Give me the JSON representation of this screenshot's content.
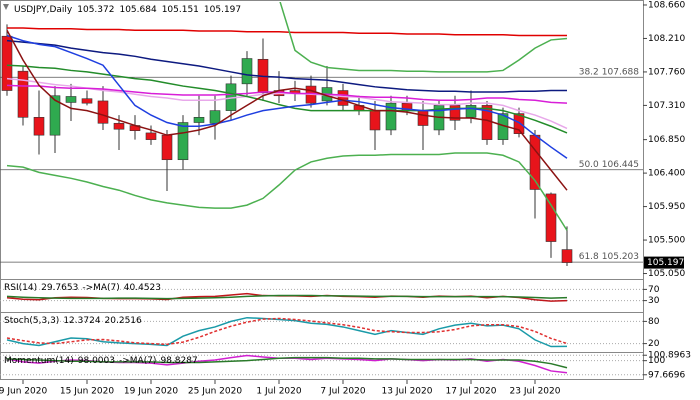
{
  "chart_data": [
    {
      "type": "candlestick",
      "title": "USDJPY,Daily",
      "categories": [
        null,
        "9 Jun 2020",
        null,
        null,
        null,
        "15 Jun 2020",
        null,
        null,
        null,
        "19 Jun 2020",
        null,
        null,
        null,
        "25 Jun 2020",
        null,
        null,
        null,
        "1 Jul 2020",
        null,
        null,
        null,
        "7 Jul 2020",
        null,
        null,
        null,
        "13 Jul 2020",
        null,
        null,
        null,
        "17 Jul 2020",
        null,
        null,
        null,
        "23 Jul 2020",
        null,
        null
      ],
      "open": [
        108.24,
        107.77,
        107.15,
        106.91,
        107.35,
        107.4,
        107.37,
        107.07,
        107.04,
        106.94,
        106.91,
        106.58,
        107.08,
        107.07,
        107.24,
        107.6,
        107.93,
        107.51,
        107.51,
        107.57,
        107.37,
        107.51,
        107.31,
        107.24,
        106.98,
        107.34,
        107.24,
        106.98,
        107.31,
        107.15,
        107.31,
        106.85,
        107.2,
        106.91,
        106.12,
        105.372
      ],
      "high": [
        108.4,
        107.84,
        107.51,
        107.57,
        107.6,
        107.51,
        107.57,
        107.18,
        107.18,
        107.04,
        106.98,
        107.18,
        107.44,
        107.44,
        107.71,
        108.04,
        108.21,
        107.77,
        107.64,
        107.71,
        107.84,
        107.6,
        107.44,
        107.37,
        107.44,
        107.44,
        107.37,
        107.37,
        107.44,
        107.51,
        107.37,
        107.28,
        107.28,
        106.98,
        106.14,
        105.684
      ],
      "low": [
        107.44,
        107.04,
        106.65,
        106.67,
        107.1,
        107.31,
        106.98,
        106.71,
        106.85,
        106.78,
        106.16,
        106.45,
        106.91,
        106.85,
        107.11,
        107.44,
        107.37,
        107.34,
        107.37,
        107.28,
        107.31,
        107.24,
        107.18,
        106.71,
        106.91,
        107.18,
        106.71,
        106.91,
        106.98,
        107.07,
        106.78,
        106.78,
        106.88,
        105.79,
        105.26,
        105.151
      ],
      "close": [
        107.51,
        107.15,
        106.91,
        107.44,
        107.43,
        107.34,
        107.07,
        106.99,
        106.97,
        106.85,
        106.58,
        107.08,
        107.15,
        107.24,
        107.6,
        107.94,
        107.48,
        107.44,
        107.47,
        107.34,
        107.55,
        107.31,
        107.24,
        106.98,
        107.34,
        107.24,
        107.04,
        107.31,
        107.11,
        107.31,
        106.85,
        107.2,
        106.93,
        106.18,
        105.48,
        105.197
      ],
      "up_color": "#2faa4f",
      "down_color": "#e8141b",
      "ylim": [
        104.99,
        108.7
      ],
      "yticks": [
        {
          "value": 108.66,
          "label": "108.660"
        },
        {
          "value": 108.21,
          "label": "108.210"
        },
        {
          "value": 107.76,
          "label": "107.760"
        },
        {
          "value": 107.31,
          "label": "107.310"
        },
        {
          "value": 106.85,
          "label": "106.850"
        },
        {
          "value": 106.4,
          "label": "106.400"
        },
        {
          "value": 105.95,
          "label": "105.950"
        },
        {
          "value": 105.5,
          "label": "105.500"
        },
        {
          "value": 105.05,
          "label": "105.050"
        }
      ],
      "lines": [
        {
          "color": "#e00000",
          "values": [
            108.35,
            108.35,
            108.34,
            108.34,
            108.34,
            108.33,
            108.33,
            108.33,
            108.32,
            108.32,
            108.32,
            108.32,
            108.31,
            108.31,
            108.31,
            108.3,
            108.3,
            108.3,
            108.29,
            108.29,
            108.29,
            108.29,
            108.28,
            108.28,
            108.28,
            108.27,
            108.27,
            108.27,
            108.26,
            108.26,
            108.26,
            108.26,
            108.25,
            108.25,
            108.25,
            108.25
          ]
        },
        {
          "color": "#4cb050",
          "values": [
            null,
            null,
            null,
            null,
            null,
            null,
            null,
            null,
            null,
            null,
            null,
            null,
            null,
            null,
            null,
            null,
            null,
            108.75,
            108.05,
            107.89,
            107.82,
            107.8,
            107.78,
            107.78,
            107.78,
            107.77,
            107.77,
            107.76,
            107.76,
            107.76,
            107.76,
            107.78,
            107.92,
            108.08,
            108.19,
            108.21
          ]
        },
        {
          "color": "#4cb050",
          "values": [
            106.5,
            106.48,
            106.41,
            106.37,
            106.33,
            106.28,
            106.22,
            106.17,
            106.1,
            106.04,
            106.0,
            105.97,
            105.94,
            105.93,
            105.93,
            105.97,
            106.06,
            106.24,
            106.44,
            106.55,
            106.6,
            106.63,
            106.64,
            106.64,
            106.65,
            106.65,
            106.65,
            106.65,
            106.67,
            106.67,
            106.67,
            106.64,
            106.55,
            106.3,
            105.97,
            105.63
          ]
        },
        {
          "color": "#0d1a80",
          "values": [
            108.18,
            108.16,
            108.14,
            108.12,
            108.08,
            108.05,
            108.02,
            108,
            107.97,
            107.93,
            107.9,
            107.87,
            107.84,
            107.8,
            107.76,
            107.72,
            107.7,
            107.69,
            107.67,
            107.66,
            107.65,
            107.62,
            107.59,
            107.56,
            107.54,
            107.52,
            107.51,
            107.5,
            107.5,
            107.49,
            107.49,
            107.49,
            107.5,
            107.5,
            107.51,
            107.51
          ]
        },
        {
          "color": "#e8a8ea",
          "values": [
            107.67,
            107.65,
            107.62,
            107.59,
            107.57,
            107.54,
            107.51,
            107.49,
            107.46,
            107.43,
            107.41,
            107.38,
            107.38,
            107.38,
            107.41,
            107.43,
            107.46,
            107.47,
            107.47,
            107.46,
            107.45,
            107.43,
            107.42,
            107.39,
            107.36,
            107.35,
            107.34,
            107.32,
            107.32,
            107.34,
            107.34,
            107.31,
            107.24,
            107.18,
            107.1,
            107.0
          ]
        },
        {
          "color": "#d81ed8",
          "values": [
            107.58,
            107.57,
            107.57,
            107.55,
            107.54,
            107.54,
            107.53,
            107.51,
            107.49,
            107.47,
            107.46,
            107.45,
            107.45,
            107.45,
            107.46,
            107.47,
            107.49,
            107.49,
            107.47,
            107.47,
            107.46,
            107.45,
            107.43,
            107.42,
            107.42,
            107.41,
            107.39,
            107.38,
            107.38,
            107.39,
            107.41,
            107.41,
            107.39,
            107.38,
            107.35,
            107.34
          ]
        },
        {
          "color": "#238c2a",
          "values": [
            107.85,
            107.84,
            107.82,
            107.81,
            107.78,
            107.76,
            107.73,
            107.7,
            107.67,
            107.65,
            107.61,
            107.57,
            107.54,
            107.51,
            107.47,
            107.43,
            107.38,
            107.32,
            107.27,
            107.24,
            107.24,
            107.24,
            107.24,
            107.24,
            107.24,
            107.24,
            107.24,
            107.26,
            107.27,
            107.27,
            107.27,
            107.24,
            107.18,
            107.11,
            107.03,
            106.94
          ]
        },
        {
          "color": "#1f3fe0",
          "values": [
            108.25,
            108.18,
            108.13,
            108.1,
            108.02,
            107.94,
            107.85,
            107.58,
            107.31,
            107.18,
            107.08,
            107.03,
            107.03,
            107.06,
            107.11,
            107.18,
            107.24,
            107.27,
            107.3,
            107.32,
            107.35,
            107.38,
            107.36,
            107.32,
            107.28,
            107.26,
            107.24,
            107.24,
            107.26,
            107.27,
            107.24,
            107.18,
            107.08,
            106.91,
            106.75,
            106.6
          ]
        },
        {
          "color": "#8b1212",
          "values": [
            108.32,
            107.92,
            107.58,
            107.38,
            107.27,
            107.24,
            107.18,
            107.11,
            107.04,
            106.98,
            106.91,
            106.94,
            106.98,
            107.04,
            107.18,
            107.31,
            107.44,
            107.51,
            107.54,
            107.51,
            107.44,
            107.38,
            107.31,
            107.24,
            107.24,
            107.22,
            107.18,
            107.15,
            107.14,
            107.14,
            107.11,
            107.04,
            106.98,
            106.71,
            106.44,
            106.17
          ]
        }
      ],
      "levels": [
        {
          "ratio": 38.2,
          "price": 107.688
        },
        {
          "ratio": {
            "value": 50,
            "label": "50.0"
          },
          "price": 106.445
        },
        {
          "ratio": 61.8,
          "price": 105.203
        }
      ],
      "level_color": "#555555"
    },
    {
      "type": "line",
      "ylim": [
        0,
        100
      ],
      "yticks": [
        70,
        30
      ],
      "grid": true,
      "series": [
        {
          "name": "RSI(14)",
          "color": "#c0161b",
          "values": [
            40,
            35,
            33,
            40,
            42,
            41,
            38,
            37,
            37,
            36,
            34,
            42,
            44,
            45,
            50,
            55,
            48,
            47,
            47,
            45,
            48,
            45,
            44,
            42,
            46,
            45,
            42,
            46,
            44,
            46,
            40,
            45,
            41,
            33,
            28,
            29.7653
          ]
        },
        {
          "name": "->MA(7)",
          "color": "#2a7a2a",
          "values": [
            45,
            42,
            40,
            39,
            38,
            38,
            38,
            39,
            39,
            38,
            37,
            38,
            39,
            40,
            42,
            45,
            47,
            48,
            48,
            48,
            47,
            47,
            46,
            45,
            45,
            45,
            44,
            44,
            44,
            44,
            44,
            44,
            43,
            41,
            39,
            40.4523
          ]
        }
      ]
    },
    {
      "type": "line",
      "ylim": [
        0,
        100
      ],
      "yticks": [
        80,
        20
      ],
      "grid": true,
      "series": [
        {
          "name": "Stoch(5,3,3)",
          "color": "#1a9aa8",
          "values": [
            30,
            20,
            15,
            25,
            35,
            33,
            25,
            22,
            20,
            18,
            15,
            40,
            55,
            65,
            80,
            90,
            88,
            85,
            82,
            75,
            72,
            65,
            55,
            45,
            55,
            50,
            45,
            60,
            70,
            75,
            68,
            70,
            60,
            30,
            12,
            12.3724
          ]
        },
        {
          "color": "#e03030",
          "dashed": true,
          "values": [
            35,
            28,
            22,
            20,
            25,
            30,
            31,
            27,
            22,
            20,
            18,
            24,
            37,
            53,
            67,
            78,
            86,
            88,
            85,
            81,
            76,
            71,
            64,
            55,
            52,
            50,
            50,
            52,
            58,
            68,
            71,
            71,
            66,
            53,
            34,
            20.2516
          ]
        }
      ]
    },
    {
      "type": "line",
      "ylim": [
        97.3,
        101.1
      ],
      "yticks": [
        100.8963,
        100,
        97.6696
      ],
      "grid": true,
      "series": [
        {
          "name": "Momentum(14)",
          "color": "#d020d0",
          "values": [
            100.3,
            99.8,
            99.6,
            99.9,
            100.1,
            100,
            99.8,
            99.7,
            99.7,
            99.6,
            99.3,
            99.6,
            99.9,
            100.1,
            100.5,
            100.85,
            100.6,
            100.4,
            100.4,
            100.2,
            100.4,
            100.3,
            100.2,
            100,
            100.3,
            100.2,
            100,
            100.2,
            100.1,
            100.3,
            99.9,
            100.2,
            99.9,
            99.2,
            98.3,
            98.0003
          ]
        },
        {
          "name": "->MA(7)",
          "color": "#2a7a2a",
          "values": [
            100.3,
            100.2,
            100.1,
            100,
            99.9,
            99.9,
            99.8,
            99.8,
            99.8,
            99.8,
            99.7,
            99.7,
            99.7,
            99.8,
            99.9,
            100,
            100.2,
            100.4,
            100.5,
            100.5,
            100.5,
            100.4,
            100.4,
            100.3,
            100.3,
            100.2,
            100.2,
            100.2,
            100.2,
            100.2,
            100.1,
            100.1,
            100.1,
            99.9,
            99.5,
            98.8287
          ]
        }
      ]
    }
  ]
}
